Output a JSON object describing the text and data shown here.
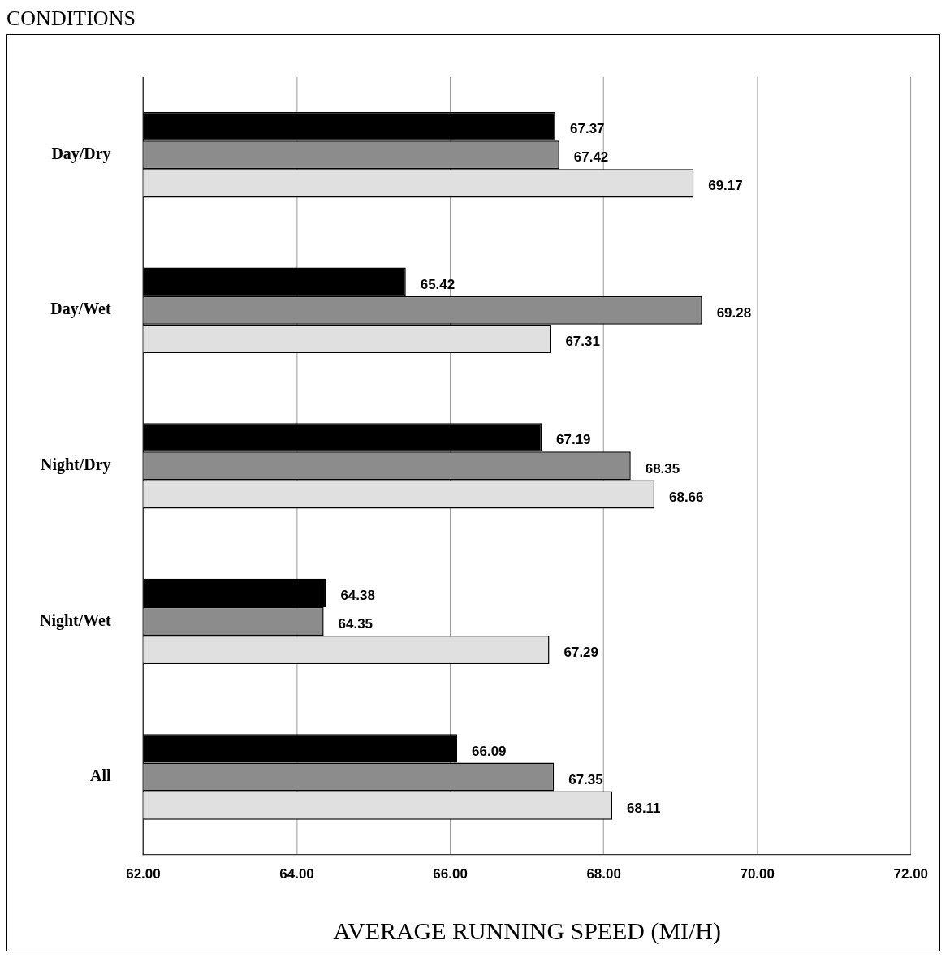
{
  "chart_data": {
    "type": "bar",
    "orientation": "horizontal",
    "ylabel": "CONDITIONS",
    "xlabel": "AVERAGE RUNNING SPEED (MI/H)",
    "categories": [
      "Day/Dry",
      "Day/Wet",
      "Night/Dry",
      "Night/Wet",
      "All"
    ],
    "series": [
      {
        "color": "#000000",
        "values": [
          67.37,
          65.42,
          67.19,
          64.38,
          66.09
        ]
      },
      {
        "color": "#8c8c8c",
        "values": [
          67.42,
          69.28,
          68.35,
          64.35,
          67.35
        ]
      },
      {
        "color": "#e0e0e0",
        "values": [
          69.17,
          67.31,
          68.66,
          67.29,
          68.11
        ]
      }
    ],
    "xlim": [
      62,
      72
    ],
    "xticks": [
      {
        "value": 62,
        "label": "62.00"
      },
      {
        "value": 64,
        "label": "64.00"
      },
      {
        "value": 66,
        "label": "66.00"
      },
      {
        "value": 68,
        "label": "68.00"
      },
      {
        "value": 70,
        "label": "70.00"
      },
      {
        "value": 72,
        "label": "72.00"
      }
    ],
    "grid": "x",
    "data_labels": true,
    "legend": false
  }
}
